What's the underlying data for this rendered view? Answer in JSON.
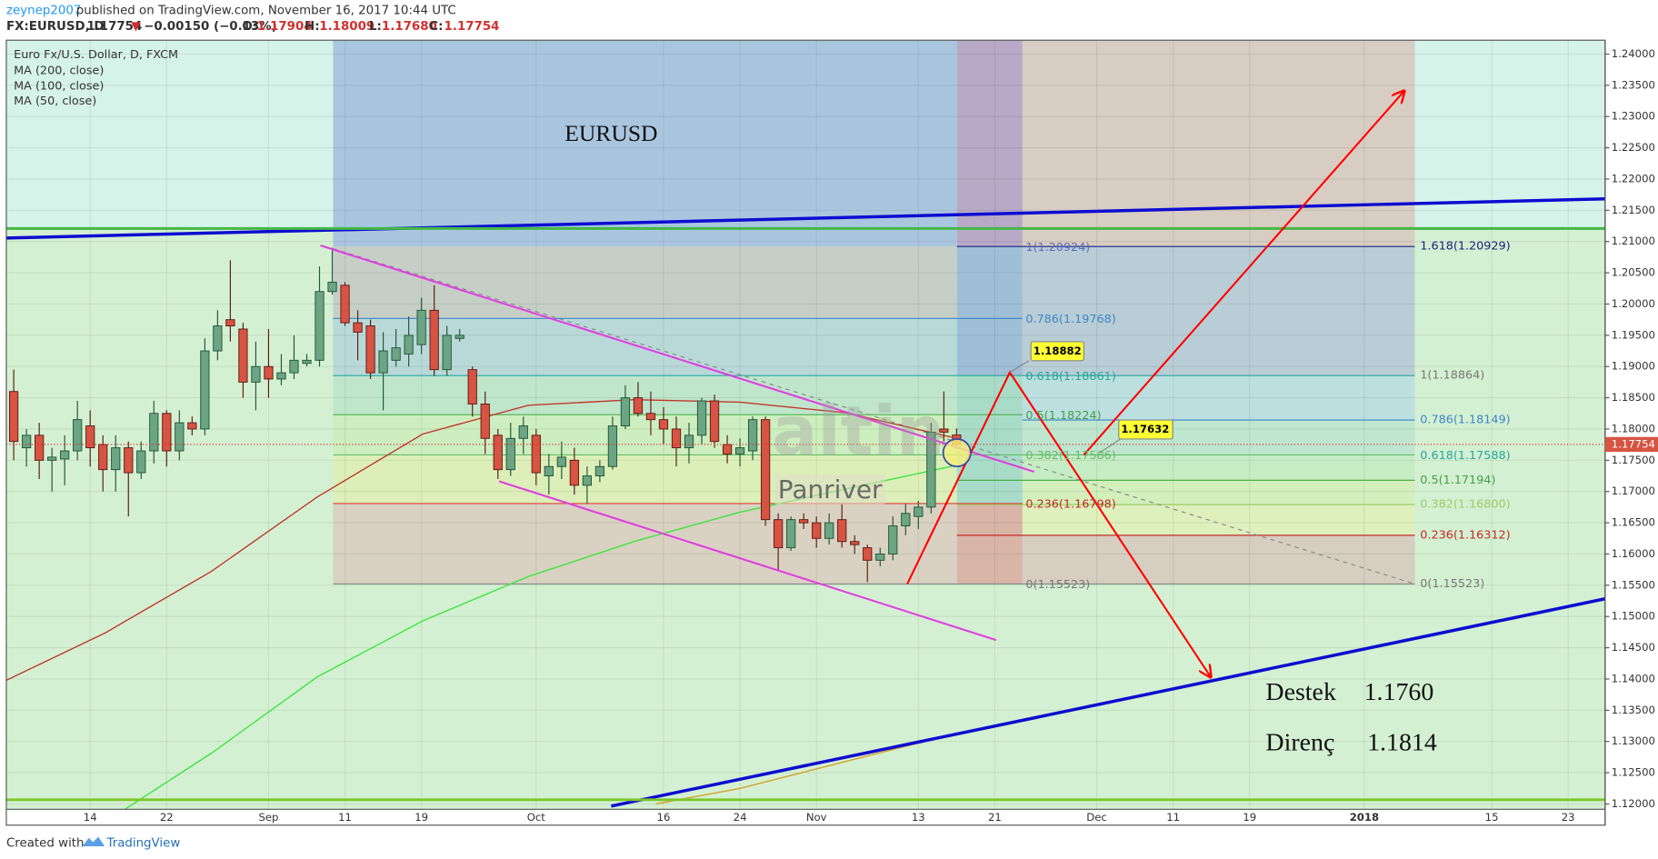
{
  "header": {
    "user": "zeynep2007",
    "published": "published on TradingView.com, November 16, 2017 10:44 UTC",
    "symbol": "FX:EURUSD, D",
    "last": "1.17754",
    "arrow": "▼",
    "change": "−0.00150 (−0.13%)",
    "o_label": "O:",
    "o": "1.17904",
    "h_label": "H:",
    "h": "1.18009",
    "l_label": "L:",
    "l": "1.17680",
    "c_label": "C:",
    "c": "1.17754"
  },
  "chart_data": {
    "type": "candlestick",
    "legend_title": "Euro Fx/U.S. Dollar, D, FXCM",
    "x": [
      0,
      1,
      2,
      3,
      4,
      5,
      6,
      7,
      8,
      9,
      10,
      11,
      12,
      13,
      14,
      15,
      16,
      17,
      18,
      19,
      20,
      21,
      22,
      23,
      24,
      25,
      26,
      27,
      28,
      29,
      30,
      31,
      32,
      33,
      34,
      35,
      36,
      37,
      38,
      39,
      40,
      41,
      42,
      43,
      44,
      45,
      46,
      47,
      48,
      49,
      50,
      51,
      52,
      53,
      54,
      55,
      56,
      57,
      58,
      59,
      60,
      61,
      62,
      63,
      64,
      65,
      66,
      67,
      68,
      69,
      70,
      71,
      72,
      73,
      74
    ],
    "open": [
      1.186,
      1.177,
      1.179,
      1.175,
      1.1752,
      1.1765,
      1.1805,
      1.1775,
      1.1735,
      1.177,
      1.173,
      1.1765,
      1.1825,
      1.1765,
      1.181,
      1.18,
      1.1925,
      1.1975,
      1.196,
      1.1875,
      1.19,
      1.188,
      1.189,
      1.1905,
      1.191,
      1.202,
      1.203,
      1.197,
      1.1965,
      1.189,
      1.191,
      1.192,
      1.1935,
      1.199,
      1.1895,
      1.1945,
      1.1895,
      1.184,
      1.179,
      1.1735,
      1.1785,
      1.179,
      1.1725,
      1.174,
      1.175,
      1.171,
      1.1725,
      1.174,
      1.1805,
      1.185,
      1.1825,
      1.1815,
      1.18,
      1.177,
      1.179,
      1.1845,
      1.1775,
      1.176,
      1.1765,
      1.1815,
      1.1655,
      1.161,
      1.1655,
      1.165,
      1.1625,
      1.1655,
      1.162,
      1.161,
      1.159,
      1.16,
      1.1645,
      1.166,
      1.1675,
      1.18,
      1.17904
    ],
    "high": [
      1.1895,
      1.18,
      1.181,
      1.177,
      1.179,
      1.1845,
      1.183,
      1.179,
      1.179,
      1.178,
      1.178,
      1.1845,
      1.183,
      1.183,
      1.182,
      1.1945,
      1.199,
      1.207,
      1.197,
      1.194,
      1.196,
      1.192,
      1.195,
      1.192,
      1.206,
      1.209,
      1.2035,
      1.199,
      1.1975,
      1.1955,
      1.196,
      1.198,
      1.201,
      1.203,
      1.1965,
      1.196,
      1.19,
      1.186,
      1.18,
      1.181,
      1.182,
      1.18,
      1.176,
      1.178,
      1.177,
      1.174,
      1.175,
      1.182,
      1.187,
      1.1875,
      1.186,
      1.1835,
      1.182,
      1.181,
      1.185,
      1.1855,
      1.179,
      1.1785,
      1.182,
      1.182,
      1.1665,
      1.166,
      1.1665,
      1.166,
      1.1665,
      1.168,
      1.163,
      1.1615,
      1.161,
      1.166,
      1.168,
      1.1685,
      1.181,
      1.186,
      1.18009
    ],
    "low": [
      1.175,
      1.174,
      1.172,
      1.17,
      1.171,
      1.175,
      1.174,
      1.17,
      1.17,
      1.166,
      1.172,
      1.1745,
      1.174,
      1.175,
      1.179,
      1.179,
      1.191,
      1.194,
      1.185,
      1.183,
      1.185,
      1.187,
      1.188,
      1.19,
      1.19,
      1.2015,
      1.1965,
      1.191,
      1.188,
      1.183,
      1.19,
      1.19,
      1.192,
      1.1885,
      1.1885,
      1.194,
      1.182,
      1.176,
      1.172,
      1.1725,
      1.176,
      1.171,
      1.1695,
      1.172,
      1.1695,
      1.168,
      1.1715,
      1.1735,
      1.18,
      1.182,
      1.179,
      1.1775,
      1.174,
      1.1745,
      1.1775,
      1.177,
      1.1745,
      1.174,
      1.175,
      1.1645,
      1.1575,
      1.1605,
      1.164,
      1.161,
      1.1615,
      1.161,
      1.16,
      1.1555,
      1.158,
      1.159,
      1.163,
      1.164,
      1.1665,
      1.178,
      1.1768
    ],
    "close": [
      1.178,
      1.179,
      1.175,
      1.1755,
      1.1765,
      1.1815,
      1.177,
      1.1735,
      1.177,
      1.173,
      1.1765,
      1.1825,
      1.1765,
      1.181,
      1.18,
      1.1925,
      1.1965,
      1.1965,
      1.1875,
      1.19,
      1.188,
      1.189,
      1.191,
      1.191,
      1.202,
      1.2035,
      1.197,
      1.1955,
      1.189,
      1.1925,
      1.193,
      1.195,
      1.199,
      1.1895,
      1.195,
      1.195,
      1.184,
      1.1785,
      1.1735,
      1.1785,
      1.1805,
      1.173,
      1.174,
      1.1755,
      1.171,
      1.1725,
      1.174,
      1.1805,
      1.185,
      1.1825,
      1.1815,
      1.18,
      1.177,
      1.179,
      1.1845,
      1.178,
      1.176,
      1.177,
      1.1815,
      1.1655,
      1.161,
      1.1655,
      1.165,
      1.1625,
      1.165,
      1.162,
      1.1615,
      1.159,
      1.16,
      1.1645,
      1.1665,
      1.1675,
      1.1795,
      1.1795,
      1.17754
    ],
    "up_color": "#6ba583",
    "down_color": "#d75442",
    "ma": [
      {
        "name": "MA (200, close)",
        "color": "#d4a12a",
        "x": [
          50.4,
          57,
          65.3,
          74
        ],
        "values": [
          1.12,
          1.1225,
          1.1268,
          1.1313
        ]
      },
      {
        "name": "MA (100, close)",
        "color": "#3ee63e",
        "x": [
          6.8,
          15.5,
          23.8,
          32.1,
          40.4,
          48.7,
          57,
          65.3,
          74
        ],
        "values": [
          1.1166,
          1.1281,
          1.1403,
          1.1493,
          1.1564,
          1.162,
          1.1667,
          1.1704,
          1.1742
        ]
      },
      {
        "name": "MA (50, close)",
        "color": "#c0392b",
        "x": [
          -0.58,
          7.2,
          15.5,
          23.8,
          32.1,
          40.4,
          48.7,
          57,
          65.3,
          73.6
        ],
        "values": [
          1.1398,
          1.1474,
          1.1572,
          1.1691,
          1.1792,
          1.1838,
          1.1847,
          1.1843,
          1.1826,
          1.1787
        ]
      }
    ],
    "last_price": 1.17754,
    "xlim": [
      -0.58,
      124.9
    ],
    "xticks": [
      {
        "value": 6,
        "label": "14"
      },
      {
        "value": 12,
        "label": "22"
      },
      {
        "value": 20,
        "label": "Sep"
      },
      {
        "value": 26,
        "label": "11"
      },
      {
        "value": 32,
        "label": "19"
      },
      {
        "value": 41,
        "label": "Oct"
      },
      {
        "value": 51,
        "label": "16"
      },
      {
        "value": 57,
        "label": "24"
      },
      {
        "value": 63,
        "label": "Nov"
      },
      {
        "value": 71,
        "label": "13"
      },
      {
        "value": 77,
        "label": "21"
      },
      {
        "value": 85,
        "label": "Dec"
      },
      {
        "value": 91,
        "label": "11"
      },
      {
        "value": 97,
        "label": "19"
      },
      {
        "value": 106,
        "label": "2018"
      },
      {
        "value": 116,
        "label": "15"
      },
      {
        "value": 122,
        "label": "23"
      }
    ],
    "ylim": [
      1.11915,
      1.24222
    ],
    "yticks": [
      {
        "value": 1.12,
        "label": "1.12000"
      },
      {
        "value": 1.125,
        "label": "1.12500"
      },
      {
        "value": 1.13,
        "label": "1.13000"
      },
      {
        "value": 1.135,
        "label": "1.13500"
      },
      {
        "value": 1.14,
        "label": "1.14000"
      },
      {
        "value": 1.145,
        "label": "1.14500"
      },
      {
        "value": 1.15,
        "label": "1.15000"
      },
      {
        "value": 1.155,
        "label": "1.15500"
      },
      {
        "value": 1.16,
        "label": "1.16000"
      },
      {
        "value": 1.165,
        "label": "1.16500"
      },
      {
        "value": 1.17,
        "label": "1.17000"
      },
      {
        "value": 1.175,
        "label": "1.17500"
      },
      {
        "value": 1.18,
        "label": "1.18000"
      },
      {
        "value": 1.185,
        "label": "1.18500"
      },
      {
        "value": 1.19,
        "label": "1.19000"
      },
      {
        "value": 1.195,
        "label": "1.19500"
      },
      {
        "value": 1.2,
        "label": "1.20000"
      },
      {
        "value": 1.205,
        "label": "1.20500"
      },
      {
        "value": 1.21,
        "label": "1.21000"
      },
      {
        "value": 1.215,
        "label": "1.21500"
      },
      {
        "value": 1.22,
        "label": "1.22000"
      },
      {
        "value": 1.225,
        "label": "1.22500"
      },
      {
        "value": 1.23,
        "label": "1.23000"
      },
      {
        "value": 1.235,
        "label": "1.23500"
      },
      {
        "value": 1.24,
        "label": "1.24000"
      }
    ],
    "grid": true
  },
  "drawings": {
    "title": "EURUSD",
    "watermark": "altin",
    "watermark2": "Panriver",
    "callouts": [
      "1.18882",
      "1.17632"
    ],
    "fib_left": [
      "1(1.20924)",
      "0.786(1.19768)",
      "0.618(1.18861)",
      "0.5(1.18224)",
      "0.382(1.17586)",
      "0.236(1.16798)",
      "0(1.15523)"
    ],
    "fib_right": [
      "1.618(1.20929)",
      "1(1.18864)",
      "0.786(1.18149)",
      "0.618(1.17588)",
      "0.5(1.17194)",
      "0.382(1.16800)",
      "0.236(1.16312)",
      "0(1.15523)"
    ],
    "notes": [
      {
        "label": "Destek",
        "value": "1.1760"
      },
      {
        "label": "Direnç",
        "value": "1.1814"
      }
    ]
  },
  "footer": {
    "created": "Created with",
    "brand": "TradingView"
  }
}
